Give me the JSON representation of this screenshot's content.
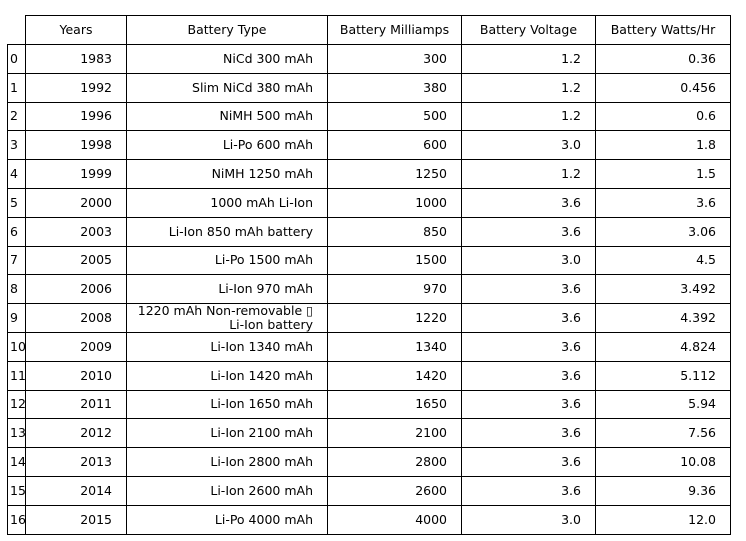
{
  "chart_data": {
    "type": "table",
    "columns": [
      "Years",
      "Battery Type",
      "Battery Milliamps",
      "Battery Voltage",
      "Battery Watts/Hr"
    ],
    "index": [
      "0",
      "1",
      "2",
      "3",
      "4",
      "5",
      "6",
      "7",
      "8",
      "9",
      "10",
      "11",
      "12",
      "13",
      "14",
      "15",
      "16"
    ],
    "rows": [
      [
        "1983",
        "NiCd 300 mAh",
        "300",
        "1.2",
        "0.36"
      ],
      [
        "1992",
        "Slim NiCd 380 mAh",
        "380",
        "1.2",
        "0.456"
      ],
      [
        "1996",
        "NiMH 500 mAh",
        "500",
        "1.2",
        "0.6"
      ],
      [
        "1998",
        "Li-Po 600 mAh",
        "600",
        "3.0",
        "1.8"
      ],
      [
        "1999",
        "NiMH 1250 mAh",
        "1250",
        "1.2",
        "1.5"
      ],
      [
        "2000",
        "1000 mAh Li-Ion",
        "1000",
        "3.6",
        "3.6"
      ],
      [
        "2003",
        "Li-Ion 850 mAh battery",
        "850",
        "3.6",
        "3.06"
      ],
      [
        "2005",
        "Li-Po 1500 mAh",
        "1500",
        "3.0",
        "4.5"
      ],
      [
        "2006",
        "Li-Ion 970 mAh",
        "970",
        "3.6",
        "3.492"
      ],
      [
        "2008",
        "1220 mAh Non-removable ▯\nLi-Ion battery",
        "1220",
        "3.6",
        "4.392"
      ],
      [
        "2009",
        "Li-Ion 1340 mAh",
        "1340",
        "3.6",
        "4.824"
      ],
      [
        "2010",
        "Li-Ion 1420 mAh",
        "1420",
        "3.6",
        "5.112"
      ],
      [
        "2011",
        "Li-Ion 1650 mAh",
        "1650",
        "3.6",
        "5.94"
      ],
      [
        "2012",
        "Li-Ion 2100 mAh",
        "2100",
        "3.6",
        "7.56"
      ],
      [
        "2013",
        "Li-Ion 2800 mAh",
        "2800",
        "3.6",
        "10.08"
      ],
      [
        "2014",
        "Li-Ion 2600 mAh",
        "2600",
        "3.6",
        "9.36"
      ],
      [
        "2015",
        "Li-Po 4000 mAh",
        "4000",
        "3.0",
        "12.0"
      ]
    ]
  }
}
